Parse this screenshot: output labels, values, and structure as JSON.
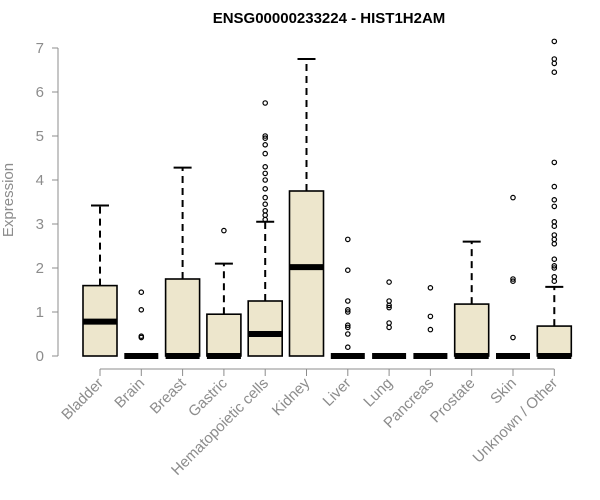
{
  "chart_data": {
    "type": "box",
    "title": "ENSG00000233224 - HIST1H2AM",
    "xlabel": "",
    "ylabel": "Expression",
    "ylim": [
      0,
      7
    ],
    "yticks": [
      0,
      1,
      2,
      3,
      4,
      5,
      6,
      7
    ],
    "grid": false,
    "box_fill": "#ede6cc",
    "categories": [
      "Bladder",
      "Brain",
      "Breast",
      "Gastric",
      "Hematopoietic cells",
      "Kidney",
      "Liver",
      "Lung",
      "Pancreas",
      "Prostate",
      "Skin",
      "Unknown / Other"
    ],
    "boxes": [
      {
        "q1": 0.0,
        "median": 0.78,
        "q3": 1.6,
        "whisker_low": 0.0,
        "whisker_high": 3.42,
        "outliers": []
      },
      {
        "q1": 0.0,
        "median": 0.0,
        "q3": 0.0,
        "whisker_low": 0.0,
        "whisker_high": 0.0,
        "outliers": [
          0.42,
          0.45,
          1.05,
          1.45
        ]
      },
      {
        "q1": 0.0,
        "median": 0.0,
        "q3": 1.75,
        "whisker_low": 0.0,
        "whisker_high": 4.28,
        "outliers": []
      },
      {
        "q1": 0.0,
        "median": 0.0,
        "q3": 0.95,
        "whisker_low": 0.0,
        "whisker_high": 2.1,
        "outliers": [
          2.85
        ]
      },
      {
        "q1": 0.0,
        "median": 0.5,
        "q3": 1.25,
        "whisker_low": 0.0,
        "whisker_high": 3.05,
        "outliers": [
          3.1,
          3.2,
          3.3,
          3.45,
          3.6,
          3.8,
          4.0,
          4.15,
          4.3,
          4.6,
          4.8,
          4.95,
          5.0,
          5.75
        ]
      },
      {
        "q1": 0.0,
        "median": 2.02,
        "q3": 3.75,
        "whisker_low": 0.0,
        "whisker_high": 6.75,
        "outliers": []
      },
      {
        "q1": 0.0,
        "median": 0.0,
        "q3": 0.0,
        "whisker_low": 0.0,
        "whisker_high": 0.0,
        "outliers": [
          0.2,
          0.5,
          0.65,
          0.7,
          1.0,
          1.05,
          1.25,
          1.95,
          2.65
        ]
      },
      {
        "q1": 0.0,
        "median": 0.0,
        "q3": 0.0,
        "whisker_low": 0.0,
        "whisker_high": 0.0,
        "outliers": [
          0.65,
          0.75,
          1.1,
          1.15,
          1.25,
          1.68
        ]
      },
      {
        "q1": 0.0,
        "median": 0.0,
        "q3": 0.0,
        "whisker_low": 0.0,
        "whisker_high": 0.0,
        "outliers": [
          0.6,
          0.9,
          1.55
        ]
      },
      {
        "q1": 0.0,
        "median": 0.0,
        "q3": 1.18,
        "whisker_low": 0.0,
        "whisker_high": 2.6,
        "outliers": []
      },
      {
        "q1": 0.0,
        "median": 0.0,
        "q3": 0.0,
        "whisker_low": 0.0,
        "whisker_high": 0.0,
        "outliers": [
          0.42,
          1.7,
          1.75,
          3.6
        ]
      },
      {
        "q1": 0.0,
        "median": 0.0,
        "q3": 0.68,
        "whisker_low": 0.0,
        "whisker_high": 1.57,
        "outliers": [
          1.7,
          1.8,
          2.0,
          2.05,
          2.2,
          2.55,
          2.65,
          2.75,
          2.95,
          3.05,
          3.4,
          3.55,
          3.85,
          4.4,
          6.45,
          6.65,
          6.75,
          7.15
        ]
      }
    ]
  }
}
